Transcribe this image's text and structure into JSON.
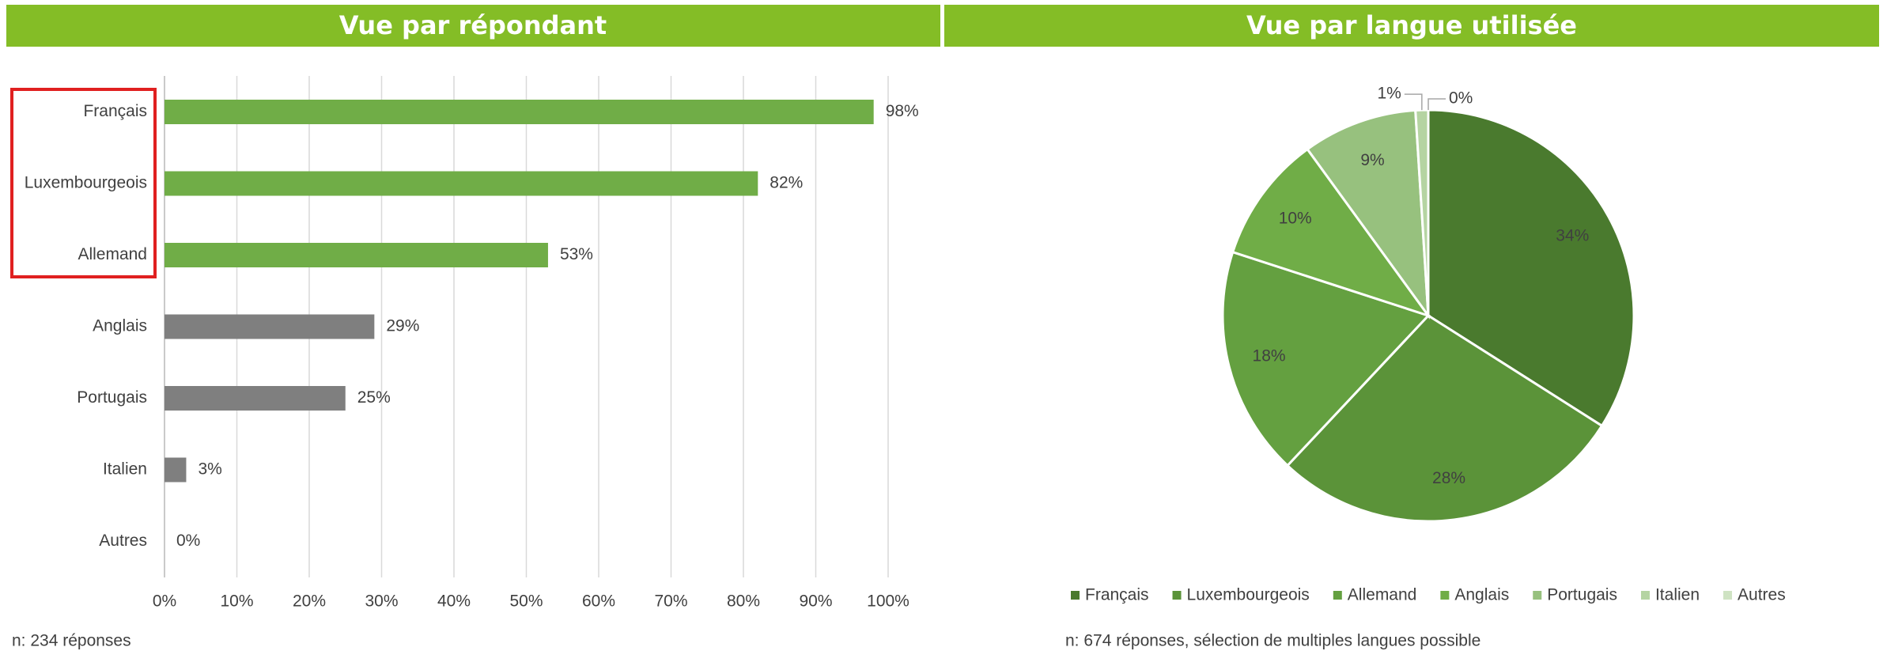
{
  "chart_data": [
    {
      "type": "barh",
      "title": "Vue par répondant",
      "categories": [
        "Français",
        "Luxembourgeois",
        "Allemand",
        "Anglais",
        "Portugais",
        "Italien",
        "Autres"
      ],
      "values": [
        98,
        82,
        53,
        29,
        25,
        3,
        0
      ],
      "value_labels": [
        "98%",
        "82%",
        "53%",
        "29%",
        "25%",
        "3%",
        "0%"
      ],
      "colors": [
        "#70ad47",
        "#70ad47",
        "#70ad47",
        "#7f7f7f",
        "#7f7f7f",
        "#7f7f7f",
        "#7f7f7f"
      ],
      "xlim": [
        0,
        100
      ],
      "xticks": [
        {
          "value": 0,
          "label": "0%"
        },
        {
          "value": 10,
          "label": "10%"
        },
        {
          "value": 20,
          "label": "20%"
        },
        {
          "value": 30,
          "label": "30%"
        },
        {
          "value": 40,
          "label": "40%"
        },
        {
          "value": 50,
          "label": "50%"
        },
        {
          "value": 60,
          "label": "60%"
        },
        {
          "value": 70,
          "label": "70%"
        },
        {
          "value": 80,
          "label": "80%"
        },
        {
          "value": 90,
          "label": "90%"
        },
        {
          "value": 100,
          "label": "100%"
        }
      ],
      "grid": true,
      "note": "n: 234 réponses"
    },
    {
      "type": "pie",
      "title": "Vue par langue utilisée",
      "categories": [
        "Français",
        "Luxembourgeois",
        "Allemand",
        "Anglais",
        "Portugais",
        "Italien",
        "Autres"
      ],
      "values": [
        34,
        28,
        18,
        10,
        9,
        1,
        0
      ],
      "value_labels": [
        "34%",
        "28%",
        "18%",
        "10%",
        "9%",
        "1%",
        "0%"
      ],
      "colors": [
        "#4a7a2e",
        "#5b9339",
        "#64a040",
        "#70ad47",
        "#97c17e",
        "#b5d4a2",
        "#cfe3c3"
      ],
      "legend": "bottom",
      "note": "n: 674 réponses, sélection de multiples langues possible"
    }
  ]
}
